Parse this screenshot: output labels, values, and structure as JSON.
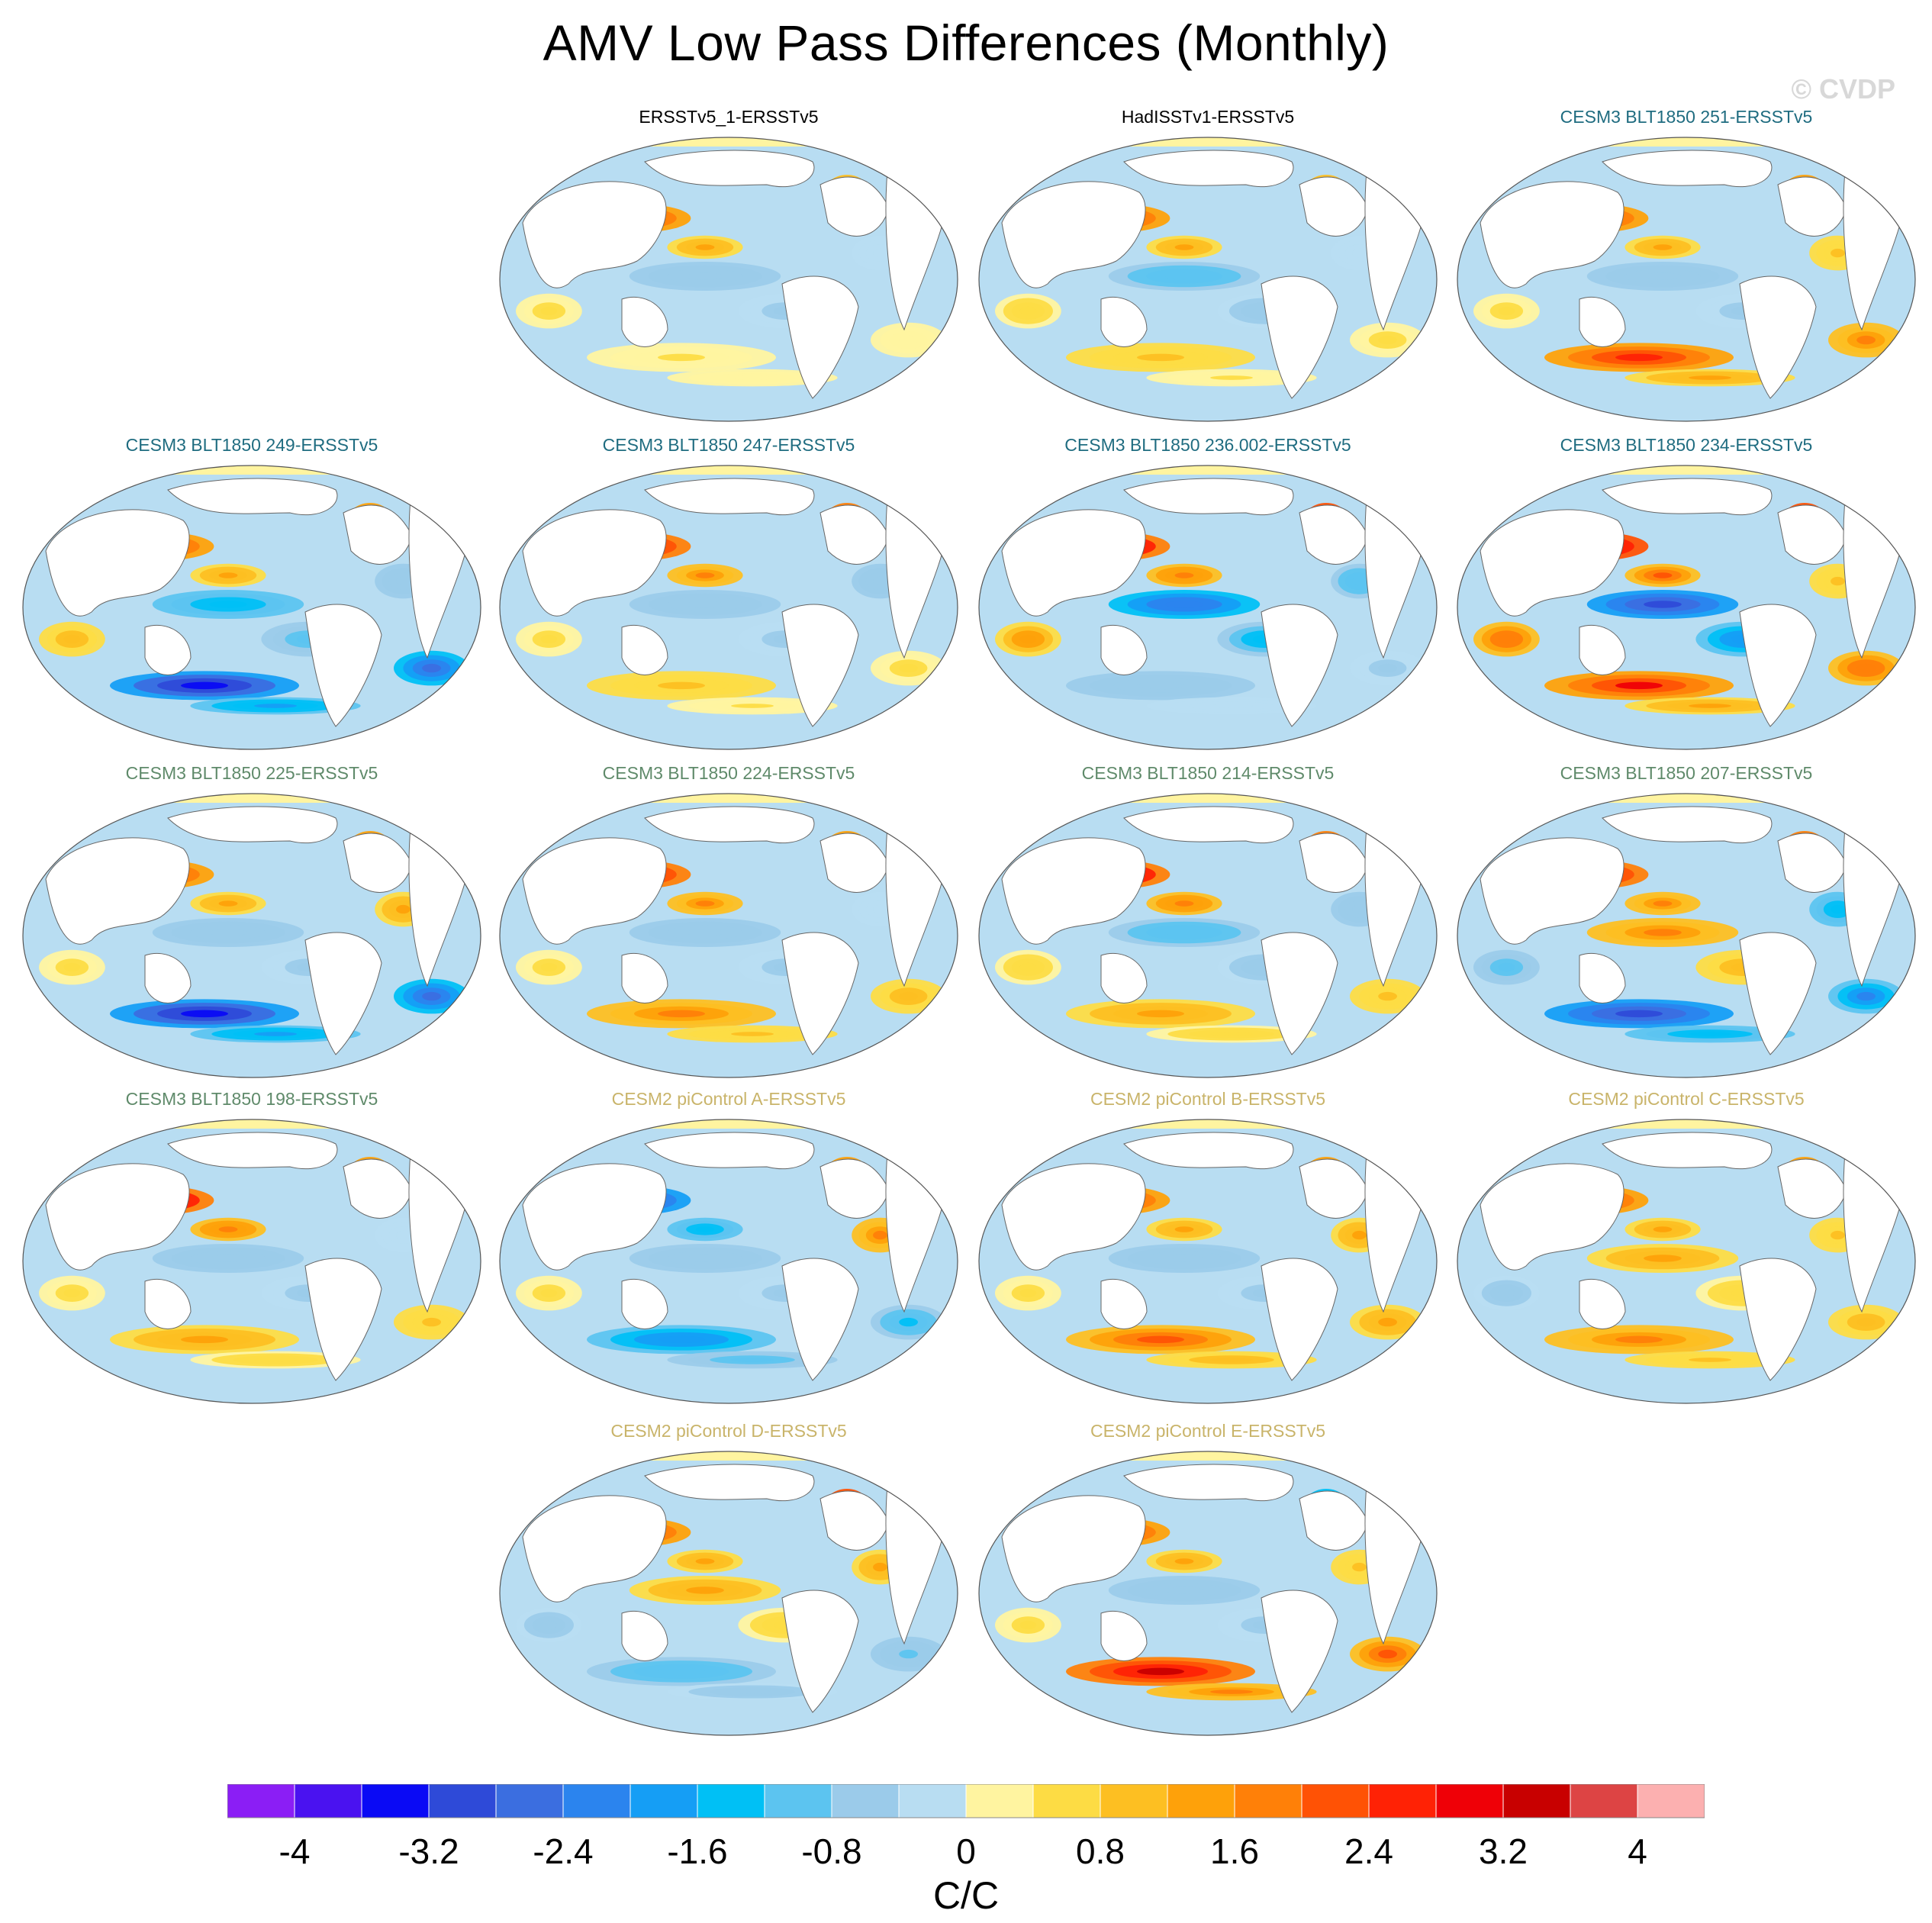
{
  "title": "AMV Low Pass Differences (Monthly)",
  "watermark": "© CVDP",
  "colors": {
    "obs_title": "#000000",
    "cesm3_teal": "#1f6c80",
    "cesm3_green": "#5f8a6a",
    "cesm2_tan": "#c9b46a"
  },
  "chart_data": {
    "type": "heatmap",
    "projection": "robinson-like global maps",
    "variable": "SST difference (AMV low pass regression)",
    "units": "C/C",
    "colorbar": {
      "levels": [
        -4.4,
        -4.0,
        -3.6,
        -3.2,
        -2.8,
        -2.4,
        -2.0,
        -1.6,
        -1.2,
        -0.8,
        -0.4,
        0,
        0.4,
        0.8,
        1.2,
        1.6,
        2.0,
        2.4,
        2.8,
        3.2,
        3.6,
        4.0,
        4.4
      ],
      "colors": [
        "#8b1ef5",
        "#4a12f0",
        "#0a0af5",
        "#2e4ad8",
        "#3b6ee0",
        "#2b84ee",
        "#159ef5",
        "#00c0f5",
        "#5cc4f0",
        "#9bcbea",
        "#b8ddf2",
        "#fff4a0",
        "#fddc44",
        "#fdbf22",
        "#fea10a",
        "#ff8008",
        "#ff5205",
        "#ff2205",
        "#ef0007",
        "#c80000",
        "#dd4444",
        "#fcb0b0"
      ],
      "tick_labels": [
        "-4",
        "-3.2",
        "-2.4",
        "-1.6",
        "-0.8",
        "0",
        "0.8",
        "1.6",
        "2.4",
        "3.2",
        "4"
      ]
    },
    "panels": [
      {
        "title": "ERSSTv5_1-ERSSTv5",
        "group": "obs",
        "npac": 2.4,
        "natl": 1.6,
        "eqpac": -0.8,
        "soc": 0.4,
        "tropatl": -0.4
      },
      {
        "title": "HadISSTv1-ERSSTv5",
        "group": "obs",
        "npac": 2.4,
        "natl": 2.0,
        "eqpac": -1.2,
        "soc": 0.8,
        "tropatl": -0.4
      },
      {
        "title": "CESM3 BLT1850 251-ERSSTv5",
        "group": "cesm3_teal",
        "npac": 2.4,
        "natl": 2.4,
        "eqpac": -0.8,
        "soc": 2.4,
        "tropatl": 0.8
      },
      {
        "title": "CESM3 BLT1850 249-ERSSTv5",
        "group": "cesm3_teal",
        "npac": 2.8,
        "natl": 2.8,
        "eqpac": -1.6,
        "soc": -3.6,
        "tropatl": -0.8
      },
      {
        "title": "CESM3 BLT1850 247-ERSSTv5",
        "group": "cesm3_teal",
        "npac": 3.2,
        "natl": 3.6,
        "eqpac": -0.8,
        "soc": 0.8,
        "tropatl": -0.8
      },
      {
        "title": "CESM3 BLT1850 236.002-ERSSTv5",
        "group": "cesm3_teal",
        "npac": 3.6,
        "natl": 4.0,
        "eqpac": -2.4,
        "soc": -0.8,
        "tropatl": -1.2
      },
      {
        "title": "CESM3 BLT1850 234-ERSSTv5",
        "group": "cesm3_teal",
        "npac": 4.0,
        "natl": 4.0,
        "eqpac": -3.2,
        "soc": 2.8,
        "tropatl": 0.8
      },
      {
        "title": "CESM3 BLT1850 225-ERSSTv5",
        "group": "cesm3_green",
        "npac": 2.8,
        "natl": 2.8,
        "eqpac": -0.8,
        "soc": -3.6,
        "tropatl": 1.2
      },
      {
        "title": "CESM3 BLT1850 224-ERSSTv5",
        "group": "cesm3_green",
        "npac": 3.2,
        "natl": 2.8,
        "eqpac": -0.8,
        "soc": 1.6,
        "tropatl": -0.4
      },
      {
        "title": "CESM3 BLT1850 214-ERSSTv5",
        "group": "cesm3_green",
        "npac": 3.6,
        "natl": 3.2,
        "eqpac": -1.2,
        "soc": 1.2,
        "tropatl": -0.8
      },
      {
        "title": "CESM3 BLT1850 207-ERSSTv5",
        "group": "cesm3_green",
        "npac": 3.2,
        "natl": 3.2,
        "eqpac": 1.6,
        "soc": -3.2,
        "tropatl": -1.6
      },
      {
        "title": "CESM3 BLT1850 198-ERSSTv5",
        "group": "cesm3_green",
        "npac": 3.6,
        "natl": 2.8,
        "eqpac": -0.8,
        "soc": 1.2,
        "tropatl": -0.4
      },
      {
        "title": "CESM2 piControl A-ERSSTv5",
        "group": "cesm2_tan",
        "npac": -3.2,
        "natl": 2.8,
        "eqpac": -0.8,
        "soc": -2.0,
        "tropatl": 1.6
      },
      {
        "title": "CESM2 piControl B-ERSSTv5",
        "group": "cesm2_tan",
        "npac": 2.8,
        "natl": 2.8,
        "eqpac": -0.8,
        "soc": 2.0,
        "tropatl": 1.2
      },
      {
        "title": "CESM2 piControl C-ERSSTv5",
        "group": "cesm2_tan",
        "npac": 2.4,
        "natl": 2.4,
        "eqpac": 1.2,
        "soc": 1.6,
        "tropatl": 0.8
      },
      {
        "title": "CESM2 piControl D-ERSSTv5",
        "group": "cesm2_tan",
        "npac": 2.4,
        "natl": 4.0,
        "eqpac": 1.2,
        "soc": -1.2,
        "tropatl": 1.2
      },
      {
        "title": "CESM2 piControl E-ERSSTv5",
        "group": "cesm2_tan",
        "npac": 2.4,
        "natl": -2.4,
        "eqpac": -0.8,
        "soc": 3.2,
        "tropatl": 0.8
      }
    ]
  }
}
